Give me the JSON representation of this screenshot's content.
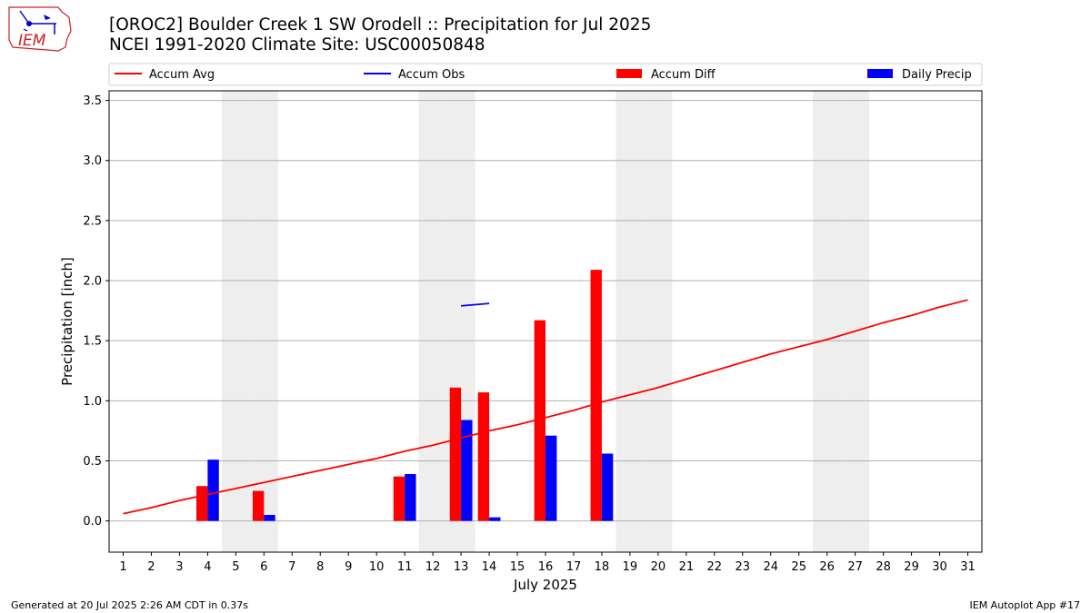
{
  "logo": {
    "text": "IEM"
  },
  "title_line1": "[OROC2] Boulder Creek 1 SW Orodell :: Precipitation for Jul 2025",
  "title_line2": "NCEI 1991-2020 Climate Site: USC00050848",
  "footer_left": "Generated at 20 Jul 2025 2:26 AM CDT in 0.37s",
  "footer_right": "IEM Autoplot App #17",
  "chart_data": {
    "type": "bar",
    "xlabel": "July 2025",
    "ylabel": "Precipitation [inch]",
    "xlim": [
      0.5,
      31.5
    ],
    "ylim": [
      -0.26,
      3.58
    ],
    "yticks": [
      0.0,
      0.5,
      1.0,
      1.5,
      2.0,
      2.5,
      3.0,
      3.5
    ],
    "ytick_labels": [
      "0.0",
      "0.5",
      "1.0",
      "1.5",
      "2.0",
      "2.5",
      "3.0",
      "3.5"
    ],
    "xticks": [
      1,
      2,
      3,
      4,
      5,
      6,
      7,
      8,
      9,
      10,
      11,
      12,
      13,
      14,
      15,
      16,
      17,
      18,
      19,
      20,
      21,
      22,
      23,
      24,
      25,
      26,
      27,
      28,
      29,
      30,
      31
    ],
    "xtick_labels": [
      "1",
      "2",
      "3",
      "4",
      "5",
      "6",
      "7",
      "8",
      "9",
      "10",
      "11",
      "12",
      "13",
      "14",
      "15",
      "16",
      "17",
      "18",
      "19",
      "20",
      "21",
      "22",
      "23",
      "24",
      "25",
      "26",
      "27",
      "28",
      "29",
      "30",
      "31"
    ],
    "grid": "horizontal",
    "weekend_days": [
      5,
      6,
      12,
      13,
      19,
      20,
      26,
      27
    ],
    "legend_position": "top",
    "legend": [
      {
        "label": "Accum Avg",
        "kind": "line",
        "color": "#ff0000"
      },
      {
        "label": "Accum Obs",
        "kind": "line",
        "color": "#0000ff"
      },
      {
        "label": "Accum Diff",
        "kind": "bar",
        "color": "#ff0000"
      },
      {
        "label": "Daily Precip",
        "kind": "bar",
        "color": "#0000ff"
      }
    ],
    "series": [
      {
        "name": "Accum Avg",
        "type": "line",
        "color": "#ff0000",
        "x": [
          1,
          2,
          3,
          4,
          5,
          6,
          7,
          8,
          9,
          10,
          11,
          12,
          13,
          14,
          15,
          16,
          17,
          18,
          19,
          20,
          21,
          22,
          23,
          24,
          25,
          26,
          27,
          28,
          29,
          30,
          31
        ],
        "values": [
          0.06,
          0.11,
          0.17,
          0.22,
          0.27,
          0.32,
          0.37,
          0.42,
          0.47,
          0.52,
          0.58,
          0.63,
          0.69,
          0.75,
          0.8,
          0.86,
          0.92,
          0.99,
          1.05,
          1.11,
          1.18,
          1.25,
          1.32,
          1.39,
          1.45,
          1.51,
          1.58,
          1.65,
          1.71,
          1.78,
          1.84
        ]
      },
      {
        "name": "Accum Obs",
        "type": "line",
        "color": "#0000ff",
        "x": [
          13,
          14
        ],
        "values": [
          1.79,
          1.81
        ]
      },
      {
        "name": "Accum Diff",
        "type": "bar",
        "color": "#ff0000",
        "x": [
          4,
          6,
          11,
          13,
          14,
          16,
          18
        ],
        "values": [
          0.29,
          0.25,
          0.37,
          1.11,
          1.07,
          1.67,
          2.09
        ]
      },
      {
        "name": "Daily Precip",
        "type": "bar",
        "color": "#0000ff",
        "x": [
          4,
          6,
          11,
          13,
          14,
          16,
          18
        ],
        "values": [
          0.51,
          0.05,
          0.39,
          0.84,
          0.03,
          0.71,
          0.56
        ]
      }
    ]
  }
}
